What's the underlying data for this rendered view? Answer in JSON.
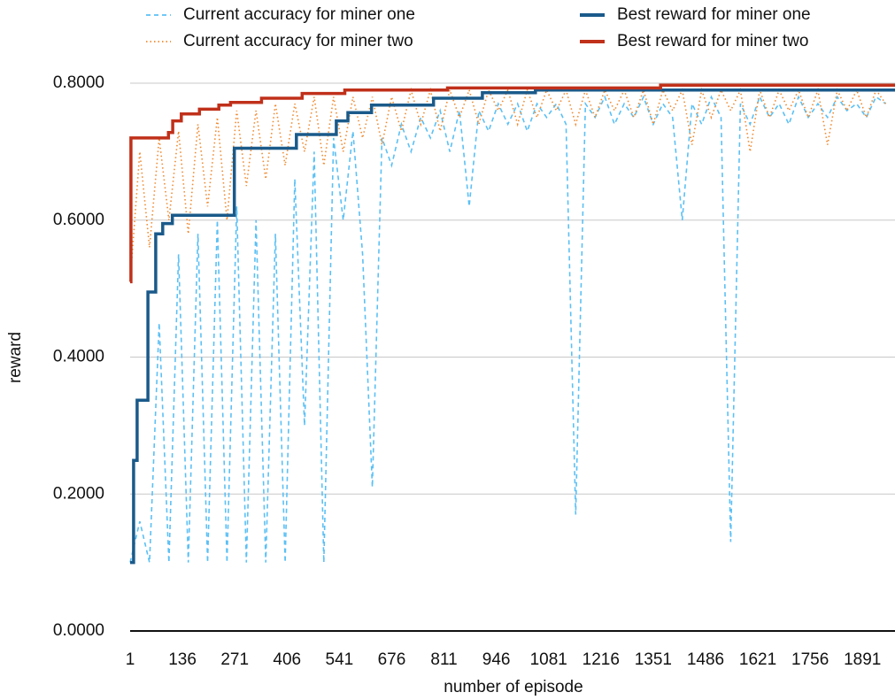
{
  "chart_data": {
    "type": "line",
    "x_label": "number of episode",
    "y_label": "reward",
    "xlim": [
      1,
      1975
    ],
    "xticks": [
      1,
      136,
      271,
      406,
      541,
      676,
      811,
      946,
      1081,
      1216,
      1351,
      1486,
      1621,
      1756,
      1891
    ],
    "ylim": [
      0,
      0.8
    ],
    "yticks": [
      {
        "value": 0,
        "label": "0.0000"
      },
      {
        "value": 0.2,
        "label": "0.2000"
      },
      {
        "value": 0.4,
        "label": "0.4000"
      },
      {
        "value": 0.6,
        "label": "0.6000"
      },
      {
        "value": 0.8,
        "label": "0.8000"
      }
    ],
    "grid": true,
    "legend": "top",
    "series": [
      {
        "name": "Current accuracy for miner one",
        "color": "#5bc0f5",
        "dash": "dashed",
        "x": [
          1,
          26,
          51,
          76,
          101,
          126,
          151,
          176,
          201,
          226,
          251,
          276,
          301,
          326,
          351,
          376,
          401,
          426,
          451,
          476,
          501,
          526,
          551,
          576,
          601,
          626,
          651,
          676,
          701,
          726,
          751,
          776,
          801,
          826,
          851,
          876,
          901,
          926,
          951,
          976,
          1001,
          1026,
          1051,
          1076,
          1101,
          1126,
          1151,
          1176,
          1201,
          1226,
          1251,
          1276,
          1301,
          1326,
          1351,
          1376,
          1401,
          1426,
          1451,
          1476,
          1501,
          1526,
          1551,
          1576,
          1601,
          1626,
          1651,
          1676,
          1701,
          1726,
          1751,
          1776,
          1801,
          1826,
          1851,
          1876,
          1901,
          1926,
          1951
        ],
        "values": [
          0.1,
          0.16,
          0.1,
          0.45,
          0.1,
          0.55,
          0.1,
          0.58,
          0.1,
          0.6,
          0.1,
          0.62,
          0.1,
          0.6,
          0.1,
          0.58,
          0.1,
          0.66,
          0.3,
          0.7,
          0.1,
          0.72,
          0.6,
          0.73,
          0.55,
          0.21,
          0.72,
          0.68,
          0.74,
          0.7,
          0.75,
          0.72,
          0.76,
          0.7,
          0.76,
          0.62,
          0.76,
          0.73,
          0.77,
          0.74,
          0.77,
          0.73,
          0.77,
          0.75,
          0.77,
          0.74,
          0.17,
          0.77,
          0.75,
          0.78,
          0.74,
          0.77,
          0.75,
          0.78,
          0.74,
          0.77,
          0.75,
          0.6,
          0.77,
          0.74,
          0.78,
          0.75,
          0.13,
          0.77,
          0.74,
          0.78,
          0.75,
          0.77,
          0.74,
          0.78,
          0.75,
          0.77,
          0.75,
          0.78,
          0.76,
          0.77,
          0.75,
          0.78,
          0.77
        ]
      },
      {
        "name": "Current accuracy for miner two",
        "color": "#f08a30",
        "dash": "dotted",
        "x": [
          1,
          26,
          51,
          76,
          101,
          126,
          151,
          176,
          201,
          226,
          251,
          276,
          301,
          326,
          351,
          376,
          401,
          426,
          451,
          476,
          501,
          526,
          551,
          576,
          601,
          626,
          651,
          676,
          701,
          726,
          751,
          776,
          801,
          826,
          851,
          876,
          901,
          926,
          951,
          976,
          1001,
          1026,
          1051,
          1076,
          1101,
          1126,
          1151,
          1176,
          1201,
          1226,
          1251,
          1276,
          1301,
          1326,
          1351,
          1376,
          1401,
          1426,
          1451,
          1476,
          1501,
          1526,
          1551,
          1576,
          1601,
          1626,
          1651,
          1676,
          1701,
          1726,
          1751,
          1776,
          1801,
          1826,
          1851,
          1876,
          1901,
          1926,
          1951
        ],
        "values": [
          0.51,
          0.7,
          0.56,
          0.72,
          0.6,
          0.73,
          0.58,
          0.74,
          0.62,
          0.75,
          0.6,
          0.76,
          0.65,
          0.76,
          0.66,
          0.77,
          0.68,
          0.77,
          0.7,
          0.78,
          0.68,
          0.78,
          0.7,
          0.78,
          0.72,
          0.78,
          0.71,
          0.78,
          0.73,
          0.79,
          0.74,
          0.79,
          0.73,
          0.79,
          0.75,
          0.79,
          0.74,
          0.79,
          0.76,
          0.79,
          0.74,
          0.79,
          0.75,
          0.79,
          0.76,
          0.79,
          0.74,
          0.79,
          0.75,
          0.79,
          0.76,
          0.79,
          0.75,
          0.79,
          0.74,
          0.79,
          0.76,
          0.79,
          0.71,
          0.79,
          0.75,
          0.79,
          0.76,
          0.79,
          0.7,
          0.79,
          0.75,
          0.79,
          0.76,
          0.79,
          0.75,
          0.79,
          0.71,
          0.79,
          0.76,
          0.79,
          0.75,
          0.79,
          0.77
        ]
      },
      {
        "name": "Best reward for miner one",
        "color": "#1a5a8a",
        "dash": "solid",
        "x": [
          1,
          10,
          10,
          19,
          19,
          47,
          47,
          67,
          67,
          85,
          85,
          110,
          110,
          270,
          270,
          430,
          430,
          533,
          533,
          563,
          563,
          624,
          624,
          784,
          784,
          910,
          910,
          1047,
          1047,
          1975
        ],
        "values": [
          0.1,
          0.1,
          0.249,
          0.249,
          0.337,
          0.337,
          0.495,
          0.495,
          0.58,
          0.58,
          0.595,
          0.595,
          0.607,
          0.607,
          0.705,
          0.705,
          0.725,
          0.725,
          0.745,
          0.745,
          0.757,
          0.757,
          0.768,
          0.768,
          0.778,
          0.778,
          0.786,
          0.786,
          0.79,
          0.79
        ]
      },
      {
        "name": "Best reward for miner two",
        "color": "#c0301a",
        "dash": "solid",
        "x": [
          1,
          3,
          3,
          100,
          100,
          111,
          111,
          133,
          133,
          180,
          180,
          230,
          230,
          260,
          260,
          340,
          340,
          445,
          445,
          555,
          555,
          820,
          820,
          1370,
          1370,
          1975
        ],
        "values": [
          0.51,
          0.51,
          0.72,
          0.72,
          0.728,
          0.728,
          0.745,
          0.745,
          0.755,
          0.755,
          0.762,
          0.762,
          0.768,
          0.768,
          0.772,
          0.772,
          0.778,
          0.778,
          0.785,
          0.785,
          0.79,
          0.79,
          0.793,
          0.793,
          0.797,
          0.797
        ]
      }
    ]
  }
}
